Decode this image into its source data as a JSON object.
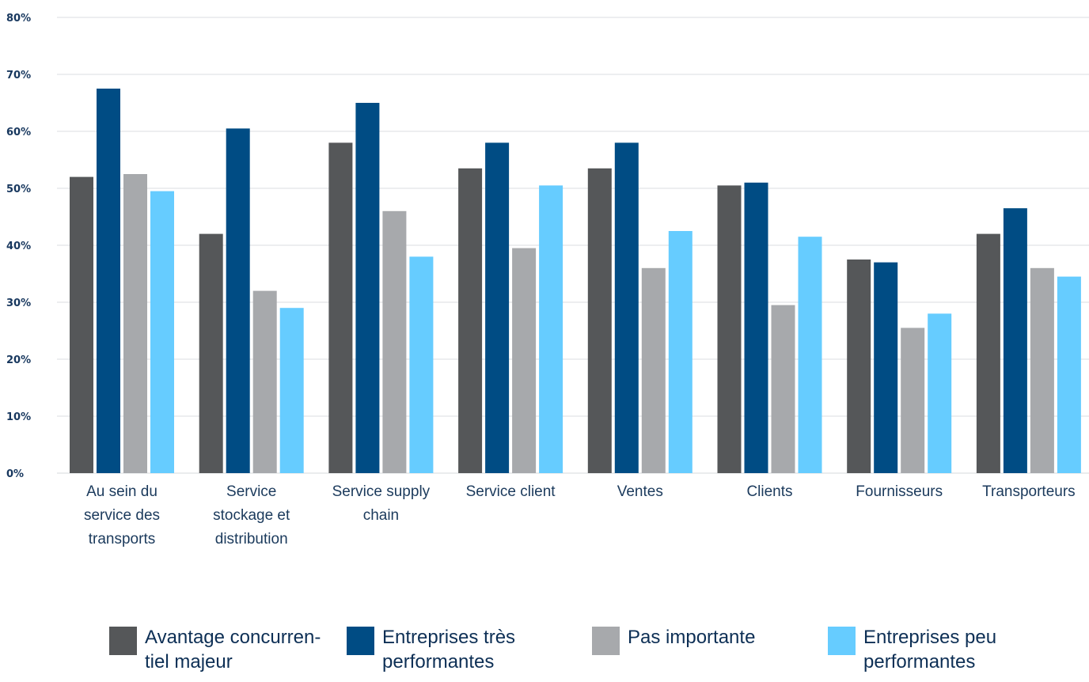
{
  "chart_data": {
    "type": "bar",
    "categories": [
      "Au sein du\nservice des\ntransports",
      "Service\nstockage et\ndistribution",
      "Service supply\nchain",
      "Service client",
      "Ventes",
      "Clients",
      "Fournisseurs",
      "Transporteurs"
    ],
    "series": [
      {
        "name": "Avantage concurren-\ntiel majeur",
        "color": "#555759",
        "values": [
          52,
          42,
          58,
          53.5,
          53.5,
          50.5,
          37.5,
          42
        ]
      },
      {
        "name": "Entreprises très\nperformantes",
        "color": "#004c84",
        "values": [
          67.5,
          60.5,
          65,
          58,
          58,
          51,
          37,
          46.5
        ]
      },
      {
        "name": "Pas importante",
        "color": "#a7a9ac",
        "values": [
          52.5,
          32,
          46,
          39.5,
          36,
          29.5,
          25.5,
          36
        ]
      },
      {
        "name": "Entreprises peu\nperformantes",
        "color": "#66ccff",
        "values": [
          49.5,
          29,
          38,
          50.5,
          42.5,
          41.5,
          28,
          34.5
        ]
      }
    ],
    "yticks": [
      "0%",
      "10%",
      "20%",
      "30%",
      "40%",
      "50%",
      "60%",
      "70%",
      "80%"
    ],
    "ylim": [
      0,
      80
    ],
    "grid": true,
    "legend_position": "bottom",
    "title": "",
    "xlabel": "",
    "ylabel": ""
  }
}
